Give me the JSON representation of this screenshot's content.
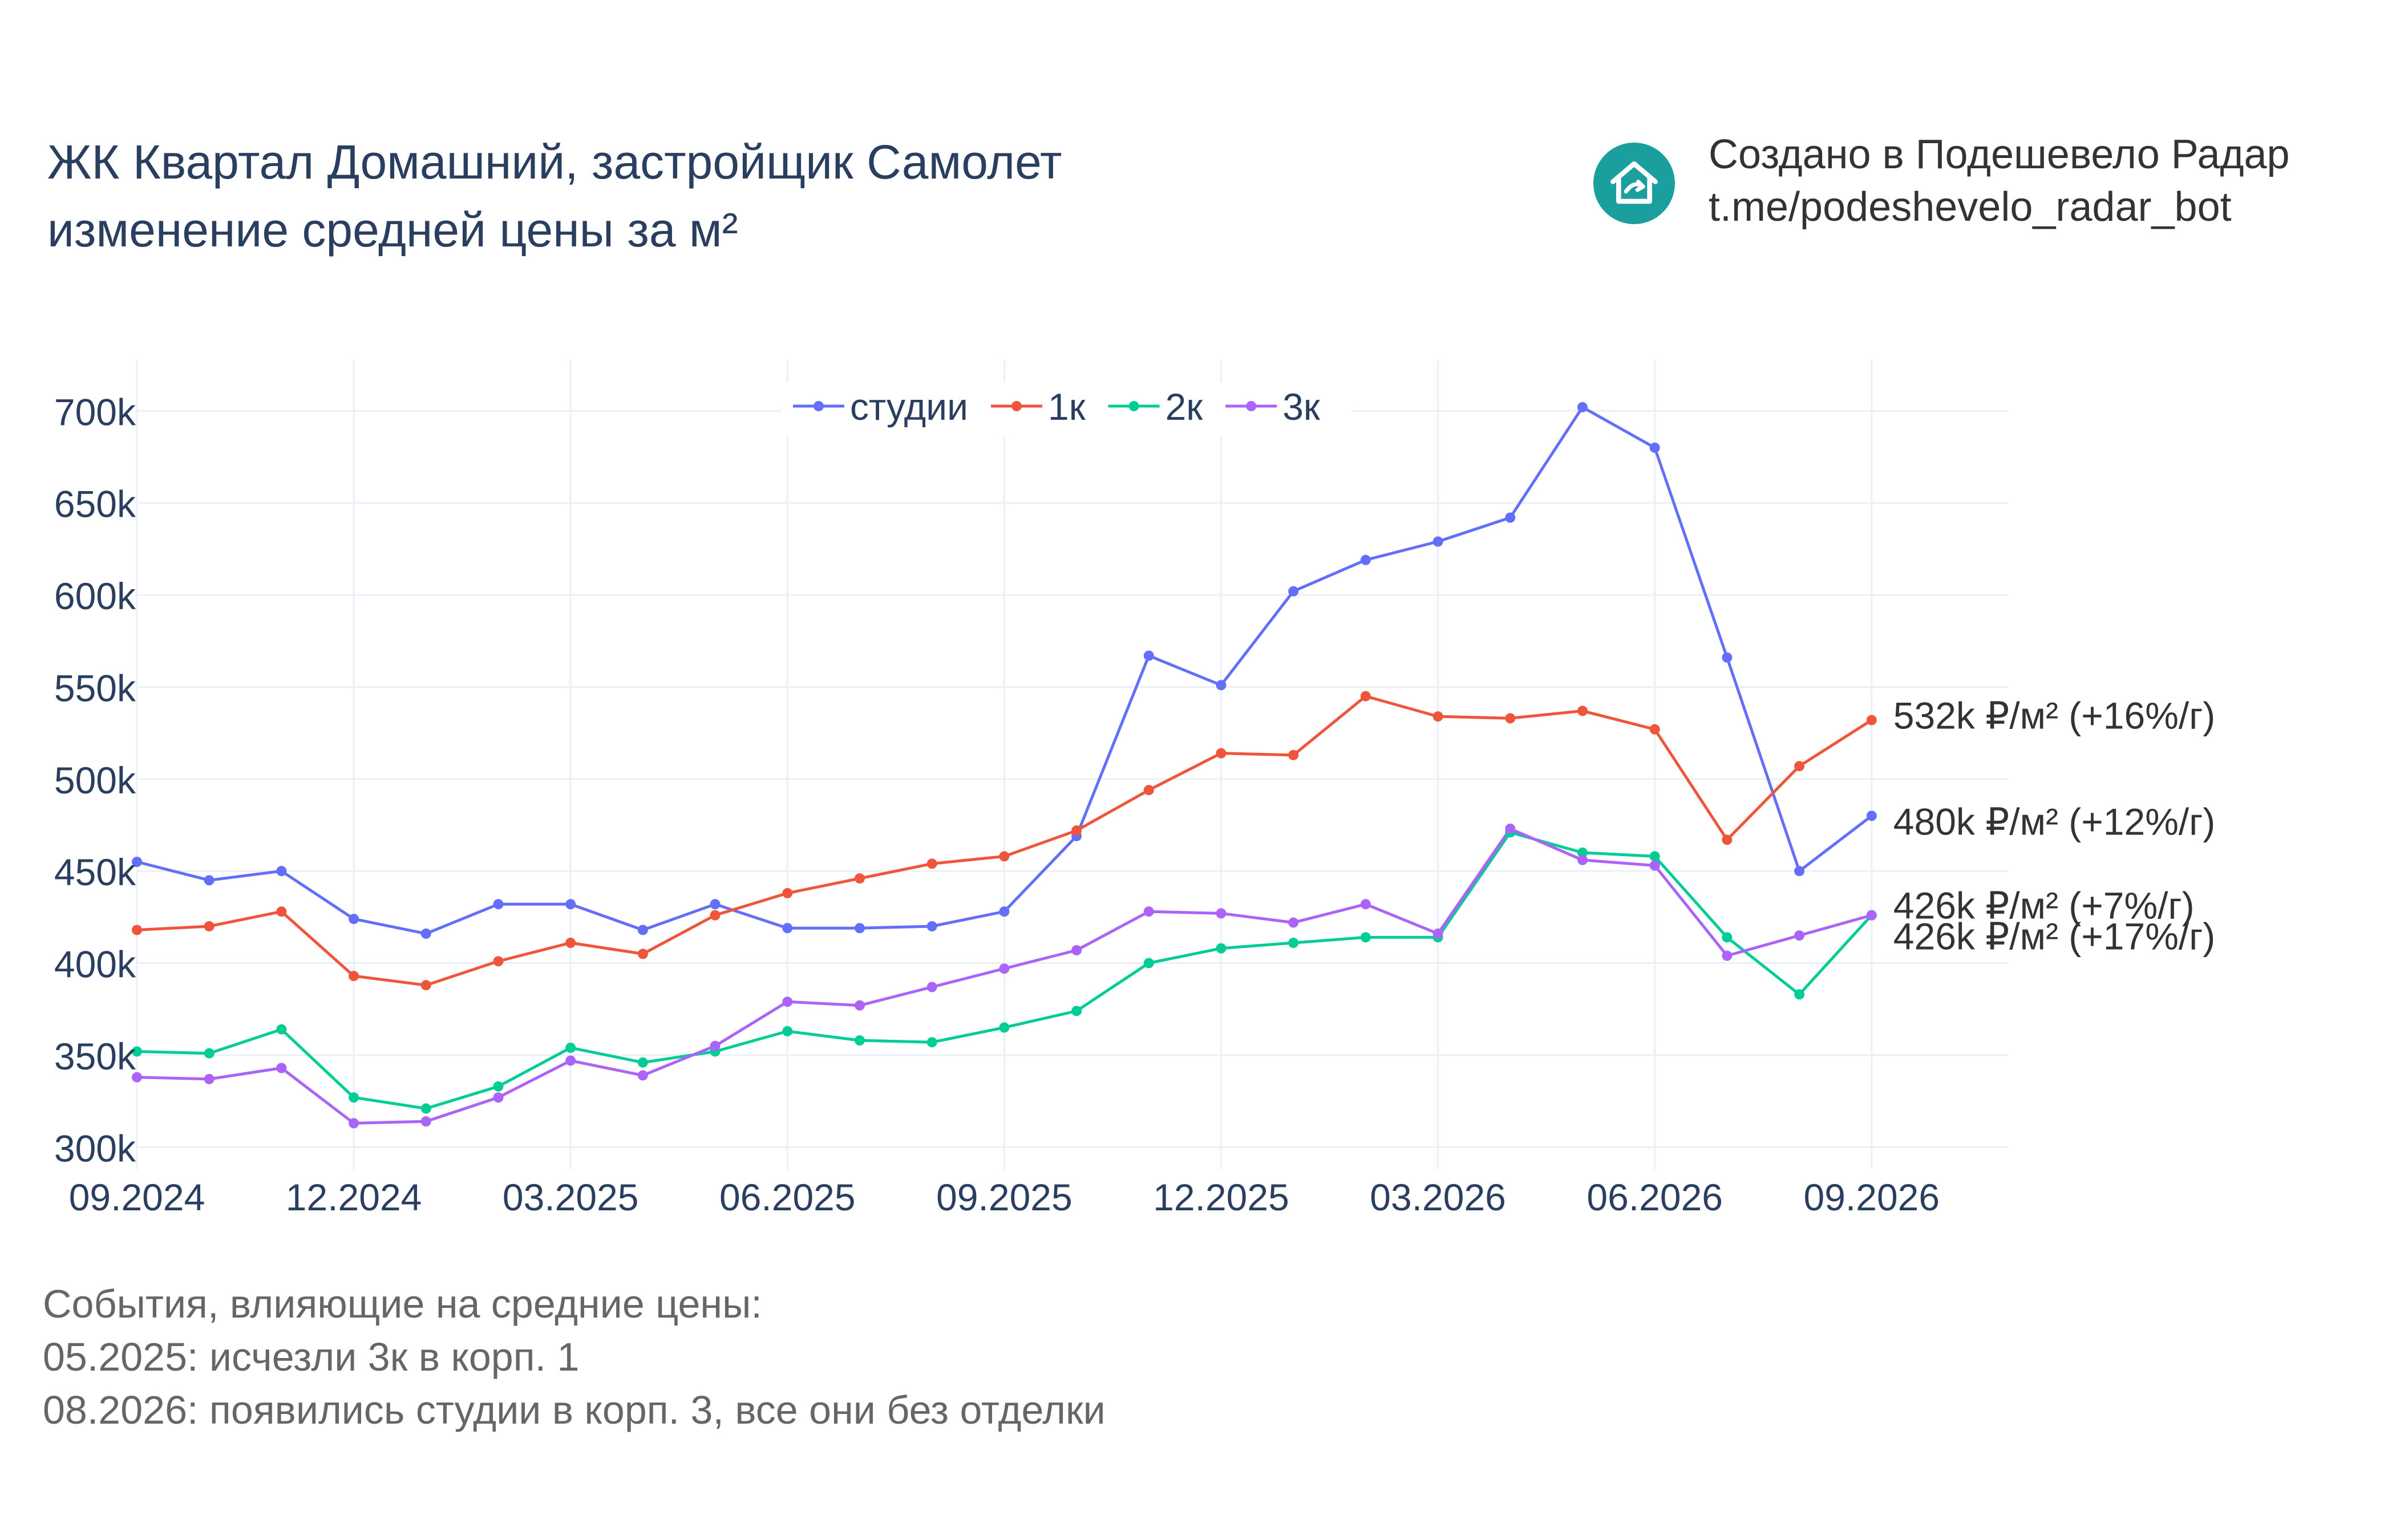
{
  "header": {
    "title_line1": "ЖК Квартал Домашний, застройщик Самолет",
    "title_line2": "изменение средней цены за м²"
  },
  "credit": {
    "line1": "Создано в Подешевело Радар",
    "line2": "t.me/podeshevelo_radar_bot",
    "logo_icon": "house-logo-icon",
    "logo_color": "#1a9e9e"
  },
  "events": {
    "heading": "События, влияющие на средние цены:",
    "items": [
      "05.2025: исчезли 3к в корп. 1",
      "08.2026: появились студии в корп. 3, все они без отделки"
    ]
  },
  "chart_data": {
    "type": "line",
    "x": [
      "09.2024",
      "10.2024",
      "11.2024",
      "12.2024",
      "01.2025",
      "02.2025",
      "03.2025",
      "04.2025",
      "05.2025",
      "06.2025",
      "07.2025",
      "08.2025",
      "09.2025",
      "10.2025",
      "11.2025",
      "12.2025",
      "01.2026",
      "02.2026",
      "03.2026",
      "04.2026",
      "05.2026",
      "06.2026",
      "07.2026",
      "08.2026",
      "09.2026"
    ],
    "x_tick_labels": [
      "09.2024",
      "12.2024",
      "03.2025",
      "06.2025",
      "09.2025",
      "12.2025",
      "03.2026",
      "06.2026",
      "09.2026"
    ],
    "y_tick_labels": [
      "300k",
      "350k",
      "400k",
      "450k",
      "500k",
      "550k",
      "600k",
      "650k",
      "700k"
    ],
    "y_ticks": [
      300000,
      350000,
      400000,
      450000,
      500000,
      550000,
      600000,
      650000,
      700000
    ],
    "ylim": [
      288000,
      728000
    ],
    "grid": true,
    "legend_position": "top-center",
    "series": [
      {
        "name": "студии",
        "color": "#636efa",
        "values": [
          455000,
          445000,
          450000,
          424000,
          416000,
          432000,
          432000,
          418000,
          432000,
          419000,
          419000,
          420000,
          428000,
          469000,
          567000,
          551000,
          602000,
          619000,
          629000,
          642000,
          702000,
          680000,
          566000,
          450000,
          480000
        ],
        "end_label": "480k ₽/м² (+12%/г)"
      },
      {
        "name": "1к",
        "color": "#ef553b",
        "values": [
          418000,
          420000,
          428000,
          393000,
          388000,
          401000,
          411000,
          405000,
          426000,
          438000,
          446000,
          454000,
          458000,
          472000,
          494000,
          514000,
          513000,
          545000,
          534000,
          533000,
          537000,
          527000,
          467000,
          507000,
          532000
        ],
        "end_label": "532k ₽/м² (+16%/г)"
      },
      {
        "name": "2к",
        "color": "#00cc96",
        "values": [
          352000,
          351000,
          364000,
          327000,
          321000,
          333000,
          354000,
          346000,
          352000,
          363000,
          358000,
          357000,
          365000,
          374000,
          400000,
          408000,
          411000,
          414000,
          414000,
          471000,
          460000,
          458000,
          414000,
          383000,
          426000
        ],
        "end_label": "426k ₽/м² (+7%/г)"
      },
      {
        "name": "3к",
        "color": "#ab63fa",
        "values": [
          338000,
          337000,
          343000,
          313000,
          314000,
          327000,
          347000,
          339000,
          355000,
          379000,
          377000,
          387000,
          397000,
          407000,
          428000,
          427000,
          422000,
          432000,
          416000,
          473000,
          456000,
          453000,
          404000,
          415000,
          426000
        ],
        "end_label": "426k ₽/м² (+17%/г)"
      }
    ]
  }
}
